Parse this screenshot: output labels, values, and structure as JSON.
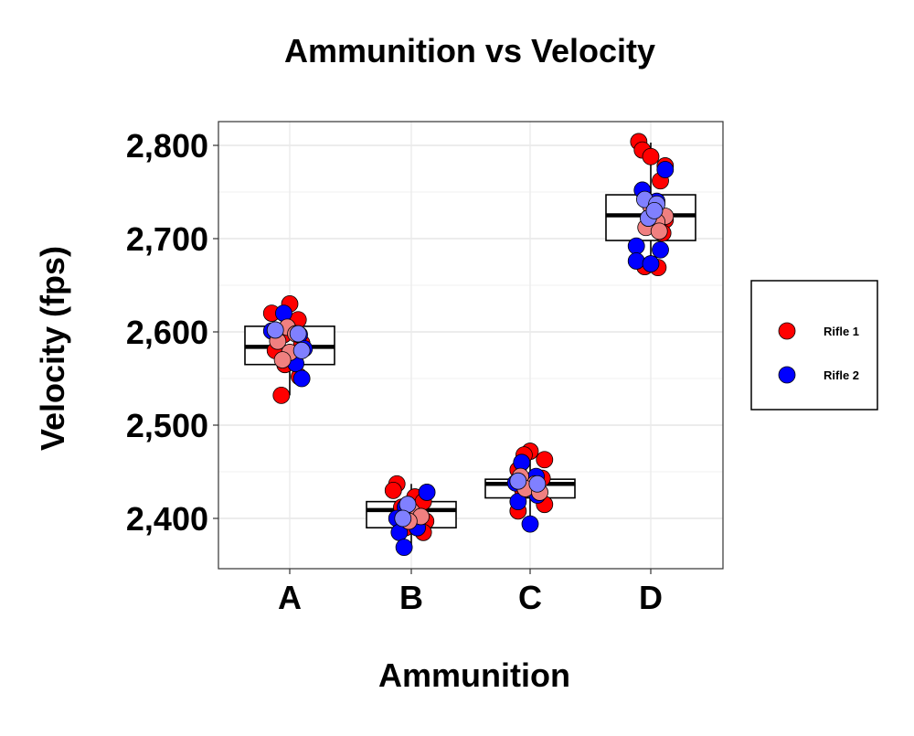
{
  "chart_data": {
    "type": "scatter",
    "title": "Ammunition vs Velocity",
    "xlabel": "Ammunition",
    "ylabel": "Velocity (fps)",
    "categories": [
      "A",
      "B",
      "C",
      "D"
    ],
    "ylim": [
      2345,
      2825
    ],
    "yticks": [
      2400,
      2500,
      2600,
      2700,
      2800
    ],
    "ytick_labels": [
      "2,400",
      "2,500",
      "2,600",
      "2,700",
      "2,800"
    ],
    "grid": true,
    "legend_position": "right",
    "boxplots": [
      {
        "category": "A",
        "q1": 2565,
        "median": 2584,
        "q3": 2606,
        "whisker_low": 2532,
        "whisker_high": 2631
      },
      {
        "category": "B",
        "q1": 2390,
        "median": 2409,
        "q3": 2418,
        "whisker_low": 2369,
        "whisker_high": 2437
      },
      {
        "category": "C",
        "q1": 2422,
        "median": 2437,
        "q3": 2442,
        "whisker_low": 2394,
        "whisker_high": 2472
      },
      {
        "category": "D",
        "q1": 2698,
        "median": 2725,
        "q3": 2747,
        "whisker_low": 2668,
        "whisker_high": 2803
      }
    ],
    "series": [
      {
        "name": "Rifle 1",
        "color": "#ff0000",
        "points": [
          {
            "x": "A",
            "dx": 0.0,
            "y": 2630
          },
          {
            "x": "A",
            "dx": -0.15,
            "y": 2620
          },
          {
            "x": "A",
            "dx": 0.07,
            "y": 2613
          },
          {
            "x": "A",
            "dx": -0.05,
            "y": 2597
          },
          {
            "x": "A",
            "dx": 0.1,
            "y": 2588
          },
          {
            "x": "A",
            "dx": -0.12,
            "y": 2580
          },
          {
            "x": "A",
            "dx": -0.04,
            "y": 2565
          },
          {
            "x": "A",
            "dx": 0.08,
            "y": 2552
          },
          {
            "x": "A",
            "dx": -0.07,
            "y": 2532
          },
          {
            "x": "B",
            "dx": -0.12,
            "y": 2437
          },
          {
            "x": "B",
            "dx": -0.15,
            "y": 2430
          },
          {
            "x": "B",
            "dx": 0.03,
            "y": 2423
          },
          {
            "x": "B",
            "dx": 0.1,
            "y": 2418
          },
          {
            "x": "B",
            "dx": -0.08,
            "y": 2412
          },
          {
            "x": "B",
            "dx": 0.12,
            "y": 2397
          },
          {
            "x": "B",
            "dx": -0.05,
            "y": 2390
          },
          {
            "x": "B",
            "dx": 0.1,
            "y": 2385
          },
          {
            "x": "C",
            "dx": 0.0,
            "y": 2472
          },
          {
            "x": "C",
            "dx": -0.05,
            "y": 2468
          },
          {
            "x": "C",
            "dx": 0.12,
            "y": 2463
          },
          {
            "x": "C",
            "dx": -0.1,
            "y": 2452
          },
          {
            "x": "C",
            "dx": 0.1,
            "y": 2443
          },
          {
            "x": "C",
            "dx": -0.06,
            "y": 2430
          },
          {
            "x": "C",
            "dx": 0.12,
            "y": 2415
          },
          {
            "x": "C",
            "dx": -0.1,
            "y": 2408
          },
          {
            "x": "D",
            "dx": -0.1,
            "y": 2804
          },
          {
            "x": "D",
            "dx": -0.07,
            "y": 2795
          },
          {
            "x": "D",
            "dx": 0.0,
            "y": 2788
          },
          {
            "x": "D",
            "dx": 0.12,
            "y": 2778
          },
          {
            "x": "D",
            "dx": 0.08,
            "y": 2762
          },
          {
            "x": "D",
            "dx": 0.12,
            "y": 2720
          },
          {
            "x": "D",
            "dx": 0.1,
            "y": 2706
          },
          {
            "x": "D",
            "dx": -0.05,
            "y": 2670
          },
          {
            "x": "D",
            "dx": 0.06,
            "y": 2669
          }
        ]
      },
      {
        "name": "Rifle 2",
        "color": "#0000ff",
        "points": [
          {
            "x": "A",
            "dx": -0.05,
            "y": 2620
          },
          {
            "x": "A",
            "dx": -0.15,
            "y": 2601
          },
          {
            "x": "A",
            "dx": 0.08,
            "y": 2597
          },
          {
            "x": "A",
            "dx": 0.12,
            "y": 2582
          },
          {
            "x": "A",
            "dx": 0.05,
            "y": 2566
          },
          {
            "x": "A",
            "dx": 0.1,
            "y": 2550
          },
          {
            "x": "B",
            "dx": 0.13,
            "y": 2428
          },
          {
            "x": "B",
            "dx": -0.05,
            "y": 2412
          },
          {
            "x": "B",
            "dx": -0.12,
            "y": 2400
          },
          {
            "x": "B",
            "dx": 0.05,
            "y": 2390
          },
          {
            "x": "B",
            "dx": -0.1,
            "y": 2385
          },
          {
            "x": "B",
            "dx": -0.06,
            "y": 2369
          },
          {
            "x": "C",
            "dx": -0.07,
            "y": 2460
          },
          {
            "x": "C",
            "dx": 0.05,
            "y": 2445
          },
          {
            "x": "C",
            "dx": -0.12,
            "y": 2438
          },
          {
            "x": "C",
            "dx": 0.06,
            "y": 2425
          },
          {
            "x": "C",
            "dx": -0.1,
            "y": 2418
          },
          {
            "x": "C",
            "dx": 0.0,
            "y": 2394
          },
          {
            "x": "D",
            "dx": 0.12,
            "y": 2774
          },
          {
            "x": "D",
            "dx": -0.07,
            "y": 2752
          },
          {
            "x": "D",
            "dx": 0.05,
            "y": 2740
          },
          {
            "x": "D",
            "dx": -0.12,
            "y": 2692
          },
          {
            "x": "D",
            "dx": 0.08,
            "y": 2688
          },
          {
            "x": "D",
            "dx": -0.12,
            "y": 2676
          },
          {
            "x": "D",
            "dx": 0.0,
            "y": 2673
          }
        ]
      },
      {
        "name": "",
        "color": "#f08080",
        "points": [
          {
            "x": "A",
            "dx": -0.02,
            "y": 2605
          },
          {
            "x": "A",
            "dx": 0.05,
            "y": 2598
          },
          {
            "x": "A",
            "dx": -0.1,
            "y": 2590
          },
          {
            "x": "A",
            "dx": 0.0,
            "y": 2578
          },
          {
            "x": "A",
            "dx": -0.06,
            "y": 2570
          },
          {
            "x": "B",
            "dx": 0.0,
            "y": 2408
          },
          {
            "x": "B",
            "dx": 0.08,
            "y": 2402
          },
          {
            "x": "B",
            "dx": -0.02,
            "y": 2397
          },
          {
            "x": "C",
            "dx": -0.08,
            "y": 2445
          },
          {
            "x": "C",
            "dx": 0.04,
            "y": 2437
          },
          {
            "x": "C",
            "dx": -0.04,
            "y": 2432
          },
          {
            "x": "C",
            "dx": 0.08,
            "y": 2428
          },
          {
            "x": "D",
            "dx": 0.0,
            "y": 2735
          },
          {
            "x": "D",
            "dx": 0.12,
            "y": 2724
          },
          {
            "x": "D",
            "dx": 0.05,
            "y": 2718
          },
          {
            "x": "D",
            "dx": -0.04,
            "y": 2712
          },
          {
            "x": "D",
            "dx": 0.07,
            "y": 2708
          }
        ]
      },
      {
        "name": "",
        "color": "#8080ff",
        "points": [
          {
            "x": "A",
            "dx": -0.12,
            "y": 2602
          },
          {
            "x": "A",
            "dx": 0.07,
            "y": 2598
          },
          {
            "x": "A",
            "dx": 0.1,
            "y": 2580
          },
          {
            "x": "B",
            "dx": -0.03,
            "y": 2415
          },
          {
            "x": "B",
            "dx": -0.07,
            "y": 2400
          },
          {
            "x": "C",
            "dx": -0.1,
            "y": 2440
          },
          {
            "x": "C",
            "dx": 0.06,
            "y": 2437
          },
          {
            "x": "D",
            "dx": -0.05,
            "y": 2742
          },
          {
            "x": "D",
            "dx": 0.05,
            "y": 2737
          },
          {
            "x": "D",
            "dx": -0.02,
            "y": 2722
          },
          {
            "x": "D",
            "dx": 0.03,
            "y": 2730
          }
        ]
      }
    ]
  }
}
